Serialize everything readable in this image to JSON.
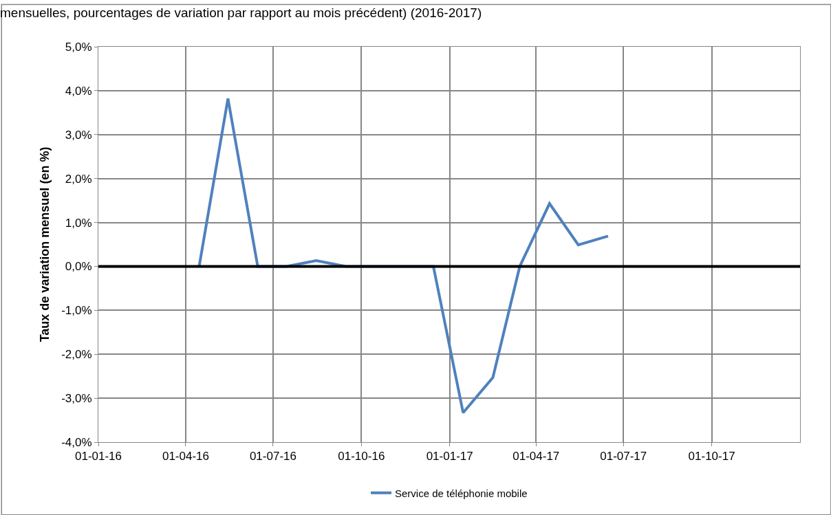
{
  "chart_data": {
    "type": "line",
    "title": "mensuelles, pourcentages de variation par rapport au mois précédent) (2016-2017)",
    "ylabel": "Taux de variation mensuel (en %)",
    "x": [
      "2016-04-15",
      "2016-05-15",
      "2016-06-15",
      "2016-07-15",
      "2016-08-15",
      "2016-09-15",
      "2016-10-15",
      "2016-11-15",
      "2016-12-15",
      "2017-01-15",
      "2017-02-15",
      "2017-03-15",
      "2017-04-15",
      "2017-05-15",
      "2017-06-15"
    ],
    "series": [
      {
        "name": "Service de téléphonie mobile",
        "color": "#4f81bd",
        "values": [
          0,
          3.82,
          0,
          0,
          0.13,
          0,
          0,
          0,
          0,
          -3.33,
          -2.53,
          0,
          1.43,
          0.49,
          0.69
        ]
      }
    ],
    "xlim": [
      "2016-01-01",
      "2018-01-01"
    ],
    "xticks": [
      {
        "value": "2016-01-01",
        "label": "01-01-16"
      },
      {
        "value": "2016-04-01",
        "label": "01-04-16"
      },
      {
        "value": "2016-07-01",
        "label": "01-07-16"
      },
      {
        "value": "2016-10-01",
        "label": "01-10-16"
      },
      {
        "value": "2017-01-01",
        "label": "01-01-17"
      },
      {
        "value": "2017-04-01",
        "label": "01-04-17"
      },
      {
        "value": "2017-07-01",
        "label": "01-07-17"
      },
      {
        "value": "2017-10-01",
        "label": "01-10-17"
      }
    ],
    "ylim": [
      -4,
      5
    ],
    "yticks": [
      {
        "value": -4,
        "label": "-4,0%"
      },
      {
        "value": -3,
        "label": "-3,0%"
      },
      {
        "value": -2,
        "label": "-2,0%"
      },
      {
        "value": -1,
        "label": "-1,0%"
      },
      {
        "value": 0,
        "label": "0,0%"
      },
      {
        "value": 1,
        "label": "1,0%"
      },
      {
        "value": 2,
        "label": "2,0%"
      },
      {
        "value": 3,
        "label": "3,0%"
      },
      {
        "value": 4,
        "label": "4,0%"
      },
      {
        "value": 5,
        "label": "5,0%"
      }
    ],
    "ref_lines": [
      {
        "axis": "y",
        "value": 0,
        "label": null,
        "color": "#000000"
      }
    ],
    "grid": true,
    "legend": "bottom",
    "marker": "none",
    "line_style": "solid"
  }
}
